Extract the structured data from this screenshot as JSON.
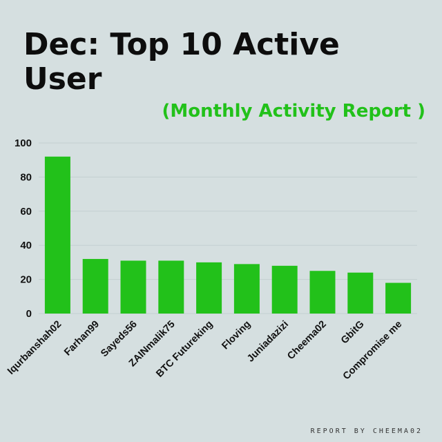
{
  "title": "Dec: Top 10 Active User",
  "subtitle": "(Monthly Activity Report )",
  "footer": "REPORT BY CHEEMA02",
  "colors": {
    "background": "#d5dfe0",
    "bar": "#22c11a",
    "subtitle": "#22c11a",
    "title": "#0d0d0d",
    "grid": "#c3cfd1"
  },
  "chart_data": {
    "type": "bar",
    "categories": [
      "Iqurbanshah02",
      "Farhan99",
      "Sayeds56",
      "ZAINmalik75",
      "BTC Futureking",
      "Floving",
      "Juniadazizi",
      "Cheema02",
      "GbitG",
      "Compromise me"
    ],
    "values": [
      92,
      32,
      31,
      31,
      30,
      29,
      28,
      25,
      24,
      18
    ],
    "ylim": [
      0,
      100
    ],
    "yticks": [
      0,
      20,
      40,
      60,
      80,
      100
    ],
    "grid": true,
    "legend": "none"
  }
}
